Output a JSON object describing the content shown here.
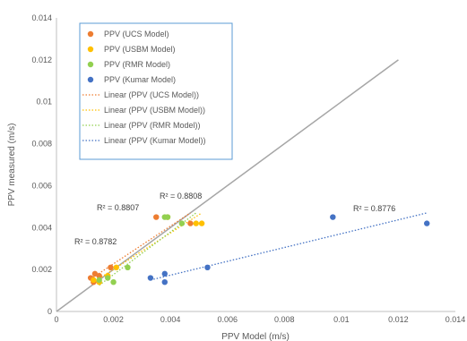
{
  "chart_data": {
    "type": "scatter",
    "title": "",
    "xlabel": "PPV Model (m/s)",
    "ylabel": "PPV measured (m/s)",
    "xlim": [
      0,
      0.014
    ],
    "ylim": [
      0,
      0.014
    ],
    "x_ticks": [
      "0",
      "0.002",
      "0.004",
      "0.006",
      "0.008",
      "0.01",
      "0.012",
      "0.014"
    ],
    "y_ticks": [
      "0",
      "0.002",
      "0.004",
      "0.006",
      "0.008",
      "0.01",
      "0.012",
      "0.014"
    ],
    "grid": false,
    "legend_position": "top-left inside",
    "reference_line": {
      "from": [
        0,
        0
      ],
      "to": [
        0.012,
        0.012
      ],
      "color": "#a6a6a6"
    },
    "series": [
      {
        "name": "PPV (UCS Model)",
        "color": "#ed7d31",
        "points": [
          [
            0.0012,
            0.0016
          ],
          [
            0.0013,
            0.0014
          ],
          [
            0.00135,
            0.0018
          ],
          [
            0.0015,
            0.0017
          ],
          [
            0.0019,
            0.0021
          ],
          [
            0.0035,
            0.0045
          ],
          [
            0.0047,
            0.0042
          ]
        ],
        "trendline": {
          "name": "Linear (PPV (UCS Model))",
          "x": [
            0.0012,
            0.0047
          ],
          "y": [
            0.00155,
            0.0047
          ],
          "r2": "R² = 0.8807"
        }
      },
      {
        "name": "PPV (USBM Model)",
        "color": "#ffc000",
        "points": [
          [
            0.0013,
            0.0015
          ],
          [
            0.0015,
            0.0014
          ],
          [
            0.0018,
            0.0017
          ],
          [
            0.0021,
            0.0021
          ],
          [
            0.0039,
            0.0045
          ],
          [
            0.0049,
            0.0042
          ],
          [
            0.0051,
            0.0042
          ]
        ],
        "trendline": {
          "name": "Linear (PPV (USBM Model))",
          "x": [
            0.0013,
            0.0051
          ],
          "y": [
            0.0014,
            0.0047
          ],
          "r2": "R² = 0.8808"
        }
      },
      {
        "name": "PPV (RMR Model)",
        "color": "#92d050",
        "points": [
          [
            0.0015,
            0.0015
          ],
          [
            0.0018,
            0.0016
          ],
          [
            0.002,
            0.0014
          ],
          [
            0.0025,
            0.0021
          ],
          [
            0.0038,
            0.0045
          ],
          [
            0.0039,
            0.0045
          ],
          [
            0.0044,
            0.0042
          ]
        ],
        "trendline": {
          "name": "Linear (PPV (RMR Model))",
          "x": [
            0.0015,
            0.0049
          ],
          "y": [
            0.00125,
            0.0047
          ],
          "r2": "R² = 0.8782"
        }
      },
      {
        "name": "PPV (Kumar Model)",
        "color": "#4472c4",
        "points": [
          [
            0.0033,
            0.0016
          ],
          [
            0.0038,
            0.0018
          ],
          [
            0.0038,
            0.0014
          ],
          [
            0.0053,
            0.0021
          ],
          [
            0.0097,
            0.0045
          ],
          [
            0.013,
            0.0042
          ]
        ],
        "trendline": {
          "name": "Linear (PPV (Kumar Model))",
          "x": [
            0.0033,
            0.013
          ],
          "y": [
            0.0015,
            0.0047
          ],
          "r2": "R² = 0.8776"
        }
      }
    ]
  }
}
